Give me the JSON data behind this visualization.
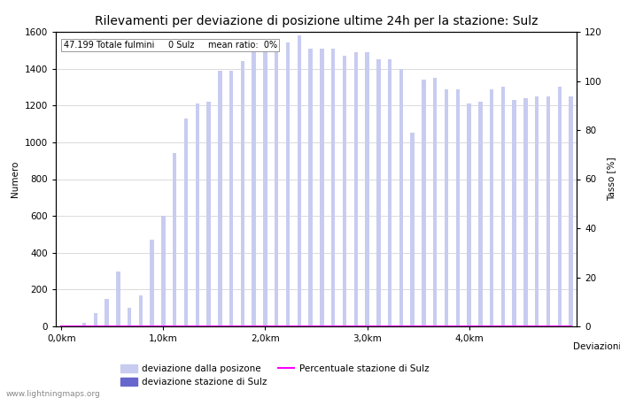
{
  "title": "Rilevamenti per deviazione di posizione ultime 24h per la stazione: Sulz",
  "subtitle": "47.199 Totale fulmini     0 Sulz     mean ratio:  0%",
  "xlabel": "Deviazioni",
  "ylabel_left": "Numero",
  "ylabel_right": "Tasso [%]",
  "watermark": "www.lightningmaps.org",
  "xlim": [
    -0.5,
    45.5
  ],
  "ylim_left": [
    0,
    1600
  ],
  "ylim_right": [
    0,
    120
  ],
  "yticks_left": [
    0,
    200,
    400,
    600,
    800,
    1000,
    1200,
    1400,
    1600
  ],
  "yticks_right": [
    0,
    20,
    40,
    60,
    80,
    100,
    120
  ],
  "xtick_labels": [
    "0,0km",
    "1,0km",
    "2,0km",
    "3,0km",
    "4,0km"
  ],
  "xtick_positions": [
    0,
    9,
    18,
    27,
    36
  ],
  "bar_values": [
    0,
    5,
    20,
    70,
    150,
    300,
    100,
    170,
    470,
    600,
    940,
    1130,
    1210,
    1220,
    1390,
    1390,
    1440,
    1500,
    1510,
    1520,
    1540,
    1580,
    1510,
    1510,
    1510,
    1470,
    1490,
    1490,
    1450,
    1450,
    1400,
    1050,
    1340,
    1350,
    1290,
    1290,
    1210,
    1220,
    1290,
    1300,
    1230,
    1240,
    1250,
    1250,
    1300,
    1250
  ],
  "sulz_values": [
    0,
    0,
    0,
    0,
    0,
    0,
    0,
    0,
    0,
    0,
    0,
    0,
    0,
    0,
    0,
    0,
    0,
    0,
    0,
    0,
    0,
    0,
    0,
    0,
    0,
    0,
    0,
    0,
    0,
    0,
    0,
    0,
    0,
    0,
    0,
    0,
    0,
    0,
    0,
    0,
    0,
    0,
    0,
    0,
    0,
    0
  ],
  "pct_values": [
    0,
    0,
    0,
    0,
    0,
    0,
    0,
    0,
    0,
    0,
    0,
    0,
    0,
    0,
    0,
    0,
    0,
    0,
    0,
    0,
    0,
    0,
    0,
    0,
    0,
    0,
    0,
    0,
    0,
    0,
    0,
    0,
    0,
    0,
    0,
    0,
    0,
    0,
    0,
    0,
    0,
    0,
    0,
    0,
    0,
    0
  ],
  "bar_color_light": "#c8ccf0",
  "bar_color_dark": "#6666cc",
  "line_color": "#ff00ff",
  "bg_color": "#ffffff",
  "grid_color": "#cccccc",
  "title_fontsize": 10,
  "axis_fontsize": 7.5,
  "legend_fontsize": 7.5
}
